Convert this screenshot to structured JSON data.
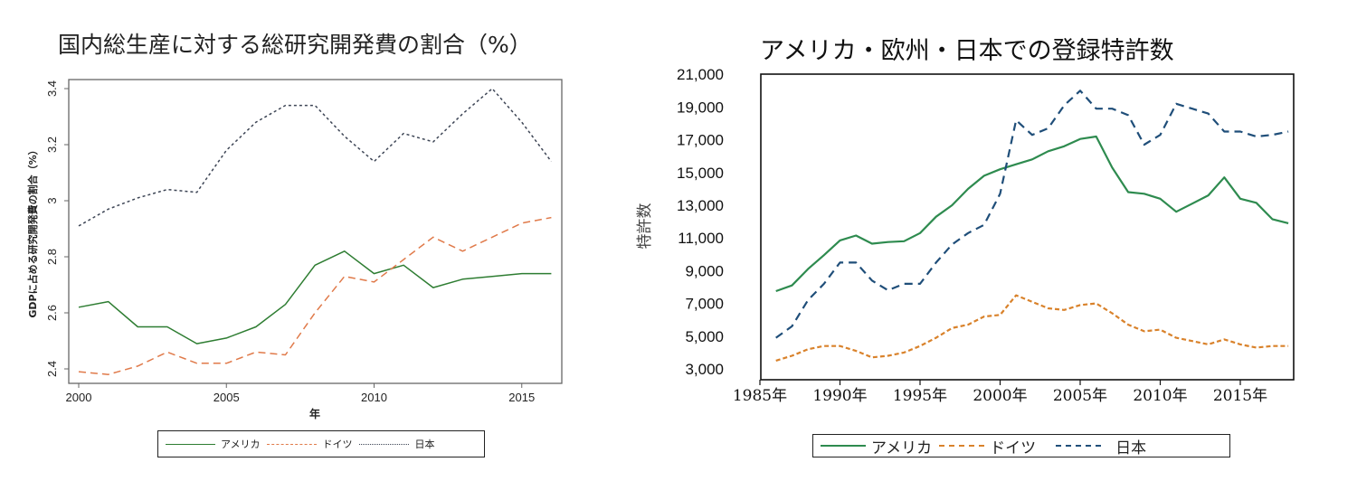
{
  "chart_data": [
    {
      "type": "line",
      "title": "国内総生産に対する総研究開発費の割合（%）",
      "xlabel": "年",
      "ylabel": "GDPに占める研究開発費の割合（%）",
      "xlim": [
        2000,
        2016
      ],
      "ylim": [
        2.37,
        3.43
      ],
      "xticks": [
        2000,
        2005,
        2010,
        2015
      ],
      "xtick_labels": [
        "2000",
        "2005",
        "2010",
        "2015"
      ],
      "yticks": [
        2.4,
        2.6,
        2.8,
        3.0,
        3.2,
        3.4
      ],
      "ytick_labels": [
        "2.4",
        "2.6",
        "2.8",
        "3",
        "3.2",
        "3.4"
      ],
      "grid": false,
      "legend_position": "bottom",
      "x": [
        2000,
        2001,
        2002,
        2003,
        2004,
        2005,
        2006,
        2007,
        2008,
        2009,
        2010,
        2011,
        2012,
        2013,
        2014,
        2015,
        2016
      ],
      "series": [
        {
          "name": "アメリカ",
          "color": "#2e7d32",
          "style": "solid",
          "values": [
            2.62,
            2.64,
            2.55,
            2.55,
            2.49,
            2.51,
            2.55,
            2.63,
            2.77,
            2.82,
            2.74,
            2.77,
            2.69,
            2.72,
            2.73,
            2.74,
            2.74
          ]
        },
        {
          "name": "ドイツ",
          "color": "#e07a4a",
          "style": "dashed",
          "values": [
            2.39,
            2.38,
            2.41,
            2.46,
            2.42,
            2.42,
            2.46,
            2.45,
            2.6,
            2.73,
            2.71,
            2.79,
            2.87,
            2.82,
            2.87,
            2.92,
            2.94
          ]
        },
        {
          "name": "日本",
          "color": "#3d4555",
          "style": "dotted",
          "values": [
            2.91,
            2.97,
            3.01,
            3.04,
            3.03,
            3.18,
            3.28,
            3.34,
            3.34,
            3.23,
            3.14,
            3.24,
            3.21,
            3.31,
            3.4,
            3.28,
            3.14
          ]
        }
      ]
    },
    {
      "type": "line",
      "title": "アメリカ・欧州・日本での登録特許数",
      "xlabel": "",
      "ylabel": "特許数",
      "xlim": [
        1985,
        2018.5
      ],
      "ylim": [
        3000,
        21000
      ],
      "xticks": [
        1985,
        1990,
        1995,
        2000,
        2005,
        2010,
        2015
      ],
      "xtick_labels": [
        "1985年",
        "1990年",
        "1995年",
        "2000年",
        "2005年",
        "2010年",
        "2015年"
      ],
      "yticks": [
        3000,
        5000,
        7000,
        9000,
        11000,
        13000,
        15000,
        17000,
        19000,
        21000
      ],
      "ytick_labels": [
        "3,000",
        "5,000",
        "7,000",
        "9,000",
        "11,000",
        "13,000",
        "15,000",
        "17,000",
        "19,000",
        "21,000"
      ],
      "grid": false,
      "legend_position": "bottom",
      "x": [
        1986,
        1987,
        1988,
        1989,
        1990,
        1991,
        1992,
        1993,
        1994,
        1995,
        1996,
        1997,
        1998,
        1999,
        2000,
        2001,
        2002,
        2003,
        2004,
        2005,
        2006,
        2007,
        2008,
        2009,
        2010,
        2011,
        2012,
        2013,
        2014,
        2015,
        2016,
        2017,
        2018
      ],
      "series": [
        {
          "name": "アメリカ",
          "color": "#2e8b4f",
          "style": "solid",
          "values": [
            7750,
            8100,
            9100,
            9950,
            10850,
            11150,
            10650,
            10750,
            10800,
            11300,
            12300,
            13000,
            14000,
            14800,
            15200,
            15500,
            15800,
            16300,
            16600,
            17050,
            17200,
            15300,
            13800,
            13700,
            13400,
            12600,
            13100,
            13600,
            14700,
            13400,
            13150,
            12150,
            11900
          ]
        },
        {
          "name": "ドイツ",
          "color": "#d9822b",
          "style": "dashed",
          "values": [
            3500,
            3800,
            4200,
            4400,
            4400,
            4100,
            3700,
            3800,
            4000,
            4400,
            4900,
            5500,
            5700,
            6200,
            6300,
            7500,
            7100,
            6700,
            6600,
            6900,
            7000,
            6400,
            5700,
            5300,
            5400,
            4900,
            4700,
            4500,
            4800,
            4500,
            4300,
            4400,
            4400
          ]
        },
        {
          "name": "日本",
          "color": "#1f4e79",
          "style": "dashed-long",
          "values": [
            4900,
            5600,
            7200,
            8200,
            9500,
            9500,
            8400,
            7800,
            8200,
            8200,
            9500,
            10600,
            11300,
            11800,
            13700,
            18200,
            17300,
            17700,
            19100,
            20000,
            18900,
            18900,
            18500,
            16700,
            17300,
            19200,
            18900,
            18600,
            17500,
            17500,
            17200,
            17300,
            17500
          ]
        }
      ]
    }
  ]
}
